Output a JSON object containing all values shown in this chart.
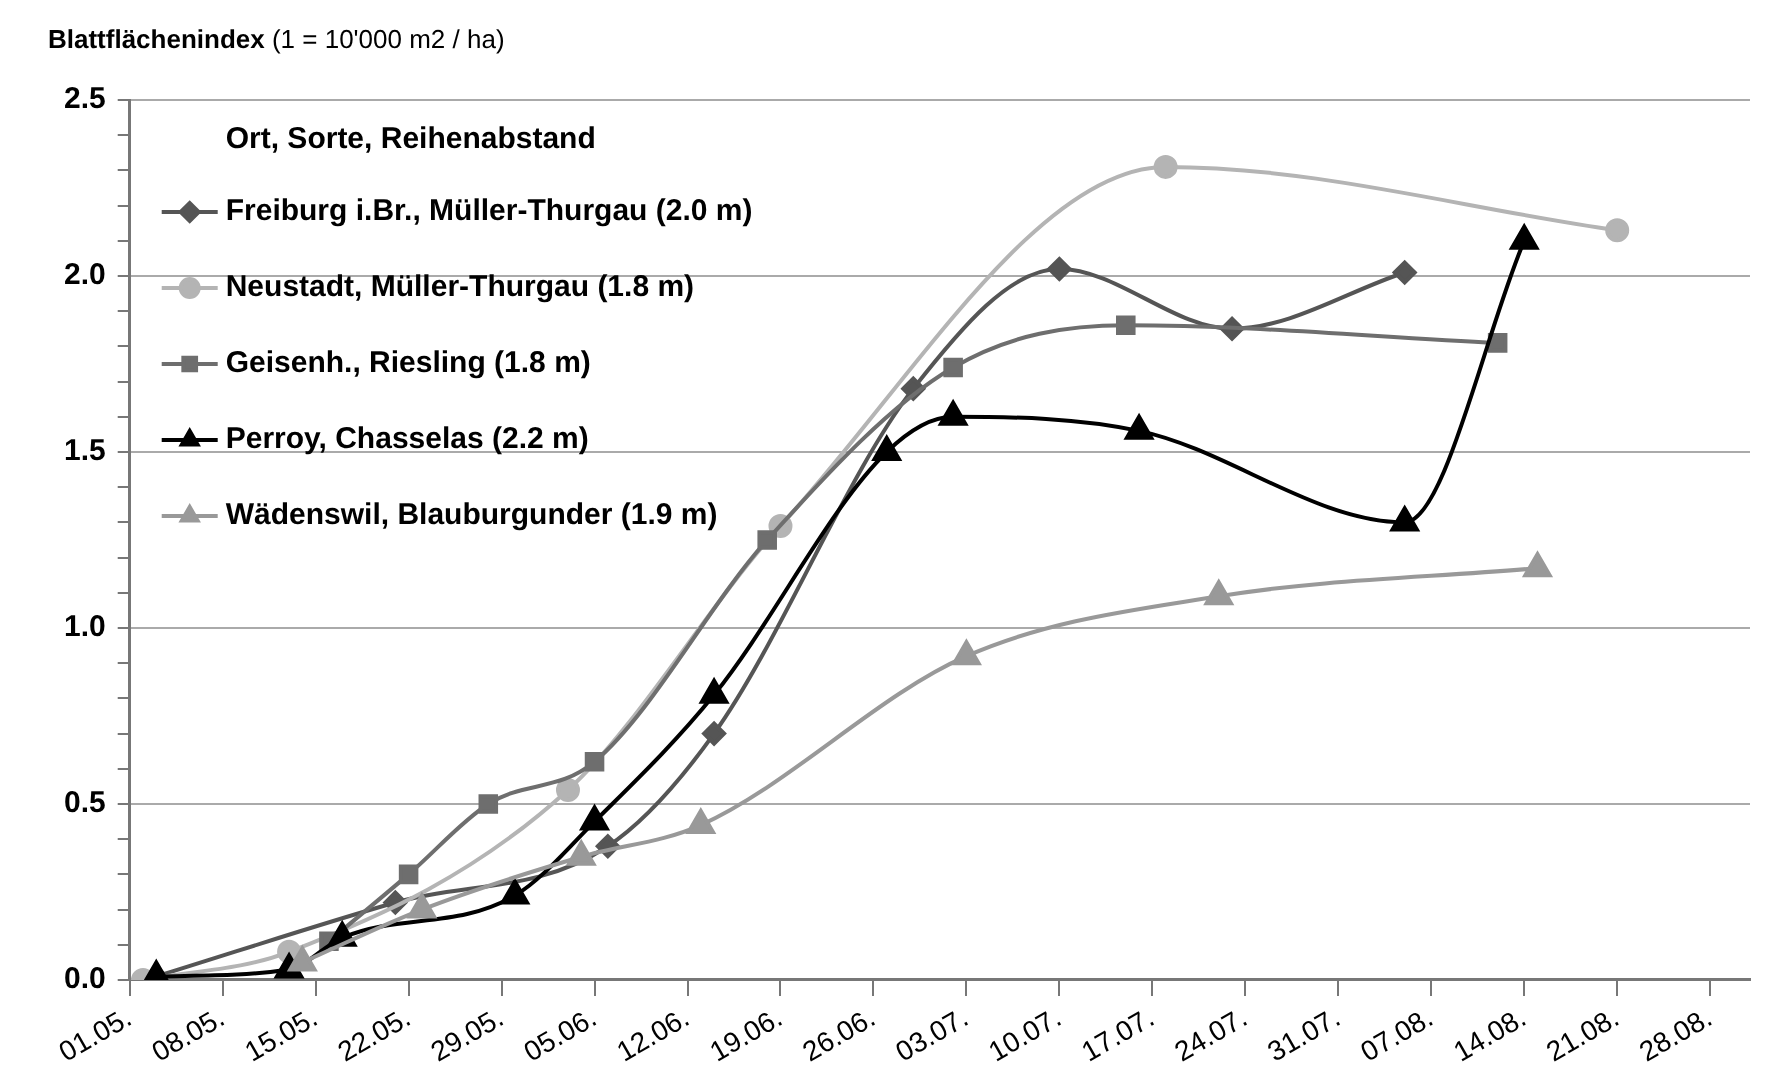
{
  "chart_data": {
    "type": "line",
    "ylabel": "Blattflächenindex (1 = 10'000 m2 / ha)",
    "legend_title": "Ort, Sorte, Reihenabstand",
    "legend": "top left",
    "grid": "y",
    "line_style": "solid",
    "xlim": [
      "--05-01",
      "--08-31"
    ],
    "xticks": [
      {
        "value": "--05-01",
        "label": "01.05."
      },
      {
        "value": "--05-08",
        "label": "08.05."
      },
      {
        "value": "--05-15",
        "label": "15.05."
      },
      {
        "value": "--05-22",
        "label": "22.05."
      },
      {
        "value": "--05-29",
        "label": "29.05."
      },
      {
        "value": "--06-05",
        "label": "05.06."
      },
      {
        "value": "--06-12",
        "label": "12.06."
      },
      {
        "value": "--06-19",
        "label": "19.06."
      },
      {
        "value": "--06-26",
        "label": "26.06."
      },
      {
        "value": "--07-03",
        "label": "03.07."
      },
      {
        "value": "--07-10",
        "label": "10.07."
      },
      {
        "value": "--07-17",
        "label": "17.07."
      },
      {
        "value": "--07-24",
        "label": "24.07."
      },
      {
        "value": "--07-31",
        "label": "31.07."
      },
      {
        "value": "--08-07",
        "label": "07.08."
      },
      {
        "value": "--08-14",
        "label": "14.08."
      },
      {
        "value": "--08-21",
        "label": "21.08."
      },
      {
        "value": "--08-28",
        "label": "28.08."
      }
    ],
    "ylim": [
      0,
      2.5
    ],
    "yticks": [
      {
        "value": 0,
        "label": "0.0"
      },
      {
        "value": 0.1,
        "label": null
      },
      {
        "value": 0.2,
        "label": null
      },
      {
        "value": 0.3,
        "label": null
      },
      {
        "value": 0.4,
        "label": null
      },
      {
        "value": 0.5,
        "label": "0.5"
      },
      {
        "value": 0.6,
        "label": null
      },
      {
        "value": 0.7,
        "label": null
      },
      {
        "value": 0.8,
        "label": null
      },
      {
        "value": 0.9,
        "label": null
      },
      {
        "value": 1,
        "label": "1.0"
      },
      {
        "value": 1.1,
        "label": null
      },
      {
        "value": 1.2,
        "label": null
      },
      {
        "value": 1.3,
        "label": null
      },
      {
        "value": 1.4,
        "label": null
      },
      {
        "value": 1.5,
        "label": "1.5"
      },
      {
        "value": 1.6,
        "label": null
      },
      {
        "value": 1.7,
        "label": null
      },
      {
        "value": 1.8,
        "label": null
      },
      {
        "value": 1.9,
        "label": null
      },
      {
        "value": 2,
        "label": "2.0"
      },
      {
        "value": 2.1,
        "label": null
      },
      {
        "value": 2.2,
        "label": null
      },
      {
        "value": 2.3,
        "label": null
      },
      {
        "value": 2.4,
        "label": null
      },
      {
        "value": 2.5,
        "label": "2.5"
      }
    ],
    "series": [
      {
        "name": "Freiburg i.Br., Müller-Thurgau (2.0 m)",
        "color": "#555555",
        "marker": "diamond",
        "x": [
          "--05-03",
          "--05-21",
          "--06-06",
          "--06-14",
          "--06-29",
          "--07-10",
          "--07-23",
          "--08-05"
        ],
        "values": [
          0.01,
          0.22,
          0.38,
          0.7,
          1.68,
          2.02,
          1.85,
          2.01
        ]
      },
      {
        "name": "Neustadt, Müller-Thurgau (1.8 m)",
        "color": "#b4b4b4",
        "marker": "circle",
        "x": [
          "--05-02",
          "--05-13",
          "--06-03",
          "--06-19",
          "--07-18",
          "--08-21"
        ],
        "values": [
          0.0,
          0.08,
          0.54,
          1.29,
          2.31,
          2.13
        ]
      },
      {
        "name": "Geisenh., Riesling (1.8 m)",
        "color": "#6e6e6e",
        "marker": "square",
        "x": [
          "--05-16",
          "--05-22",
          "--05-28",
          "--06-05",
          "--06-18",
          "--07-02",
          "--07-15",
          "--08-12"
        ],
        "values": [
          0.11,
          0.3,
          0.5,
          0.62,
          1.25,
          1.74,
          1.86,
          1.81
        ]
      },
      {
        "name": "Perroy, Chasselas (2.2 m)",
        "color": "#000000",
        "marker": "triangle",
        "x": [
          "--05-03",
          "--05-13",
          "--05-17",
          "--05-30",
          "--06-05",
          "--06-14",
          "--06-27",
          "--07-02",
          "--07-16",
          "--08-05",
          "--08-14"
        ],
        "values": [
          0.01,
          0.03,
          0.12,
          0.24,
          0.45,
          0.81,
          1.5,
          1.6,
          1.56,
          1.3,
          2.1
        ]
      },
      {
        "name": "Wädenswil, Blauburgunder (1.9 m)",
        "color": "#999999",
        "marker": "triangle",
        "x": [
          "--05-14",
          "--05-23",
          "--06-04",
          "--06-13",
          "--07-03",
          "--07-22",
          "--08-15"
        ],
        "values": [
          0.05,
          0.2,
          0.35,
          0.44,
          0.92,
          1.09,
          1.17
        ]
      }
    ]
  }
}
